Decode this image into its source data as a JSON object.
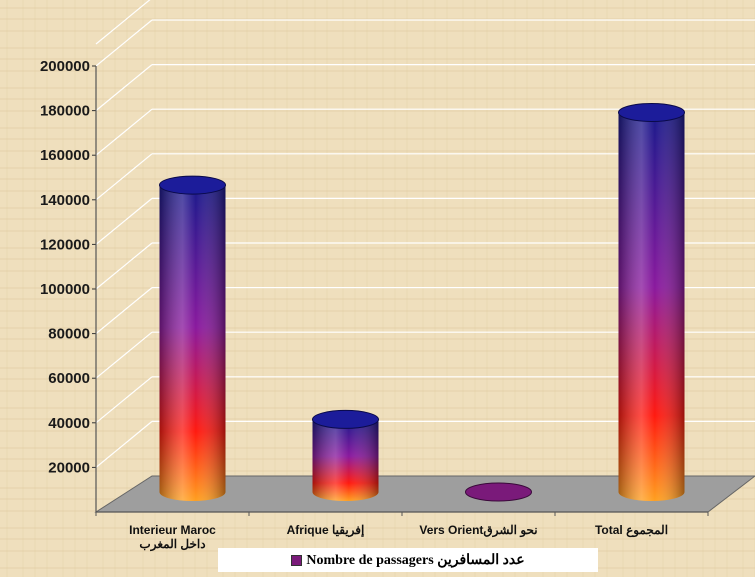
{
  "chart_data": {
    "type": "bar",
    "style": "3d-cylinder",
    "categories": [
      {
        "line1": "Interieur Maroc",
        "line2": "داخل المغرب"
      },
      {
        "line1": "Afrique إفريقيا",
        "line2": ""
      },
      {
        "line1": "Vers Orientنحو الشرق",
        "line2": ""
      },
      {
        "line1": "Total المجموع",
        "line2": ""
      }
    ],
    "series": [
      {
        "name": "Nombre de passagers عدد المسافرين",
        "values": [
          148000,
          35000,
          1000,
          183000
        ],
        "color": "#7a1a7a"
      }
    ],
    "yticks": [
      20000,
      40000,
      60000,
      80000,
      100000,
      120000,
      140000,
      160000,
      180000,
      200000
    ],
    "ylim": [
      0,
      200000
    ],
    "grid": true,
    "legend_position": "bottom",
    "colors": {
      "cylinder_top": "#1a1a8c",
      "cylinder_mid": "#a0189a",
      "cylinder_low": "#ff1a10",
      "cylinder_base": "#ffa020",
      "floor": "#9e9e9e",
      "gridline": "#ffffff"
    }
  }
}
